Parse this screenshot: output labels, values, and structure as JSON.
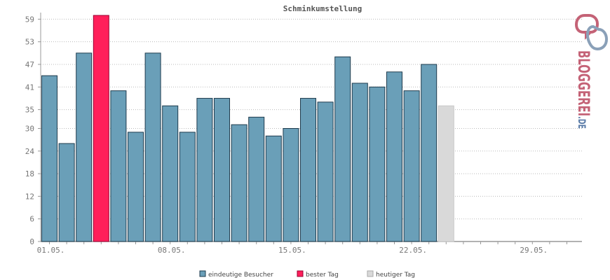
{
  "chart_data": {
    "type": "bar",
    "title": "Schminkumstellung",
    "xlabel": "",
    "ylabel": "",
    "ylim": [
      0,
      60
    ],
    "yticks": [
      0,
      6,
      12,
      18,
      24,
      30,
      35,
      41,
      47,
      53,
      59
    ],
    "x_tick_labels": [
      {
        "label": "01.05.",
        "day": 1
      },
      {
        "label": "08.05.",
        "day": 8
      },
      {
        "label": "15.05.",
        "day": 15
      },
      {
        "label": "22.05.",
        "day": 22
      },
      {
        "label": "29.05.",
        "day": 29
      }
    ],
    "days_in_month": 31,
    "grid": true,
    "legend_position": "bottom",
    "series": [
      {
        "name": "eindeutige Besucher",
        "color": "#6a9fb8",
        "values": [
          44,
          26,
          50,
          60,
          40,
          29,
          50,
          36,
          29,
          38,
          38,
          31,
          33,
          28,
          30,
          38,
          37,
          49,
          42,
          41,
          45,
          40,
          47,
          null,
          null,
          null,
          null,
          null,
          null,
          null,
          null
        ]
      },
      {
        "name": "bester Tag",
        "color": "#ff1f5a",
        "day": 4,
        "value": 60
      },
      {
        "name": "heutiger Tag",
        "color": "#d9d9d9",
        "day": 24,
        "value": 36
      }
    ]
  },
  "logo": {
    "text": "BLOGGEREI",
    "suffix": ".DE",
    "color": "#c46276",
    "suffix_color": "#5b7ca8"
  }
}
